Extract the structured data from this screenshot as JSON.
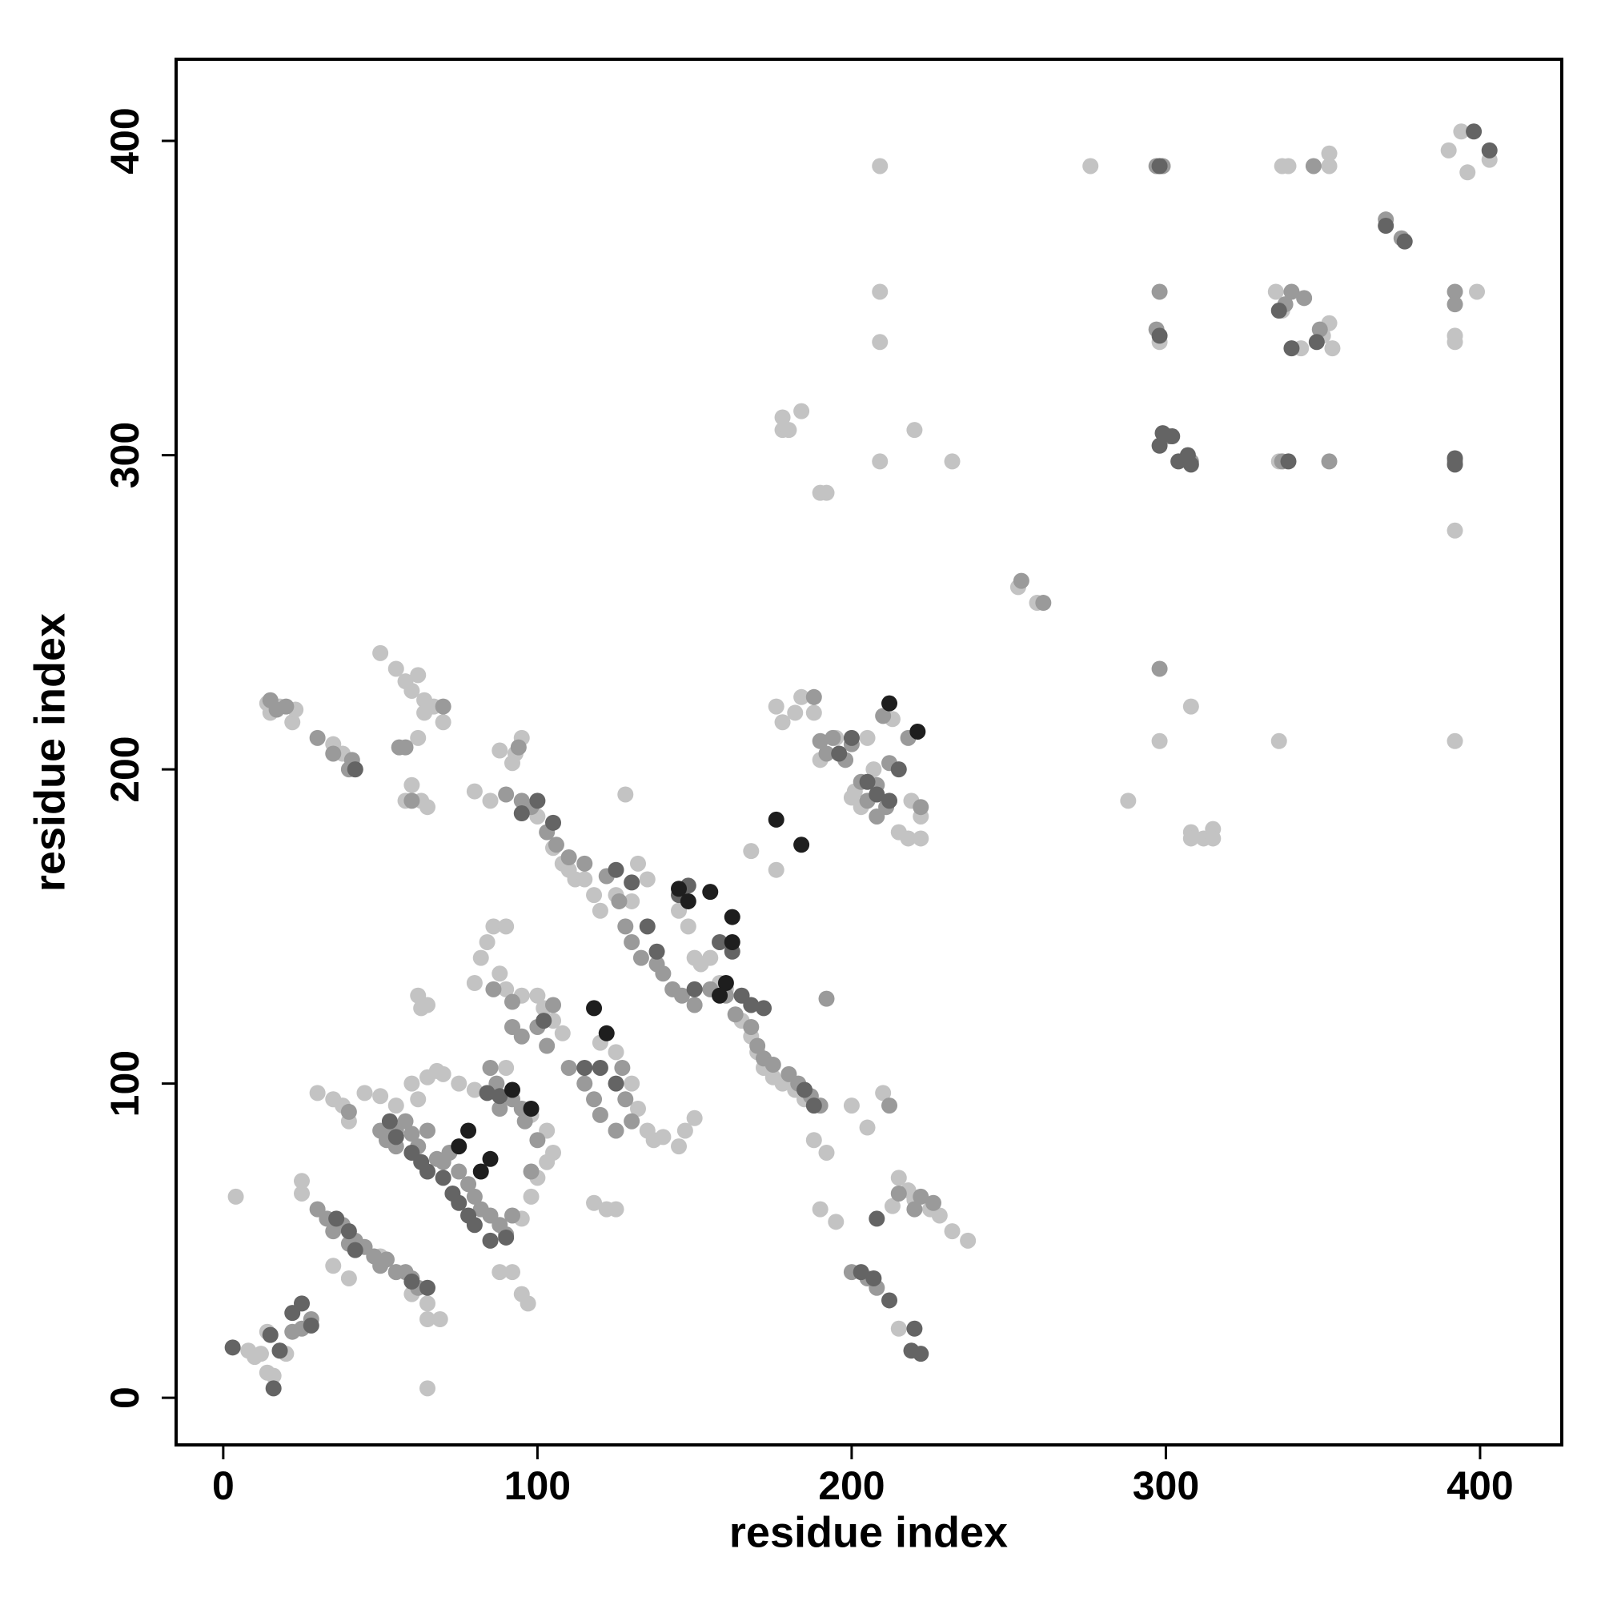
{
  "chart_data": {
    "type": "scatter",
    "x_label": "residue index",
    "y_label": "residue index",
    "xlim": [
      -15,
      426
    ],
    "ylim": [
      -15,
      426
    ],
    "xticks": [
      0,
      100,
      200,
      300,
      400
    ],
    "yticks": [
      0,
      100,
      200,
      300,
      400
    ],
    "series": [
      {
        "color": "#c3c3c3",
        "x": [
          209,
          276,
          337,
          339,
          352,
          352,
          390,
          394,
          396,
          403,
          209,
          209,
          298,
          352,
          350,
          353,
          335,
          337,
          343,
          392,
          392,
          399,
          209,
          232,
          220,
          178,
          178,
          184,
          180,
          190,
          192,
          336,
          392,
          298,
          336,
          392,
          308,
          288,
          308,
          308,
          312,
          315,
          315,
          253,
          259,
          176,
          178,
          182,
          184,
          188,
          190,
          195,
          200,
          201,
          203,
          213,
          215,
          218,
          222,
          222,
          219,
          205,
          207,
          176,
          168,
          50,
          55,
          58,
          62,
          60,
          64,
          67,
          70,
          62,
          64,
          58,
          60,
          63,
          65,
          80,
          85,
          88,
          95,
          93,
          92,
          14,
          15,
          18,
          22,
          23,
          38,
          35,
          100,
          105,
          108,
          110,
          112,
          115,
          118,
          120,
          125,
          130,
          128,
          132,
          135,
          145,
          148,
          150,
          152,
          155,
          158,
          160,
          165,
          168,
          170,
          172,
          175,
          178,
          182,
          185,
          188,
          192,
          190,
          195,
          200,
          210,
          205,
          213,
          215,
          218,
          220,
          225,
          228,
          232,
          237,
          215,
          45,
          50,
          55,
          60,
          62,
          65,
          68,
          70,
          75,
          80,
          80,
          82,
          84,
          86,
          90,
          88,
          90,
          95,
          100,
          102,
          105,
          108,
          62,
          63,
          65,
          30,
          35,
          38,
          40,
          92,
          95,
          97,
          88,
          95,
          98,
          100,
          103,
          105,
          103,
          98,
          90,
          120,
          125,
          130,
          132,
          135,
          137,
          140,
          145,
          147,
          150,
          118,
          122,
          125,
          35,
          40,
          50,
          55,
          60,
          65,
          65,
          69,
          25,
          25,
          4,
          8,
          10,
          12,
          14,
          16,
          14,
          20,
          65
        ],
        "y": [
          392,
          392,
          392,
          392,
          392,
          396,
          397,
          403,
          390,
          394,
          352,
          336,
          336,
          342,
          338,
          334,
          352,
          346,
          334,
          338,
          336,
          352,
          298,
          298,
          308,
          308,
          312,
          314,
          308,
          288,
          288,
          298,
          276,
          209,
          209,
          209,
          220,
          190,
          180,
          178,
          178,
          181,
          178,
          258,
          253,
          220,
          215,
          218,
          223,
          218,
          203,
          210,
          191,
          193,
          188,
          216,
          180,
          178,
          178,
          185,
          190,
          210,
          200,
          168,
          174,
          237,
          232,
          228,
          230,
          225,
          222,
          220,
          215,
          210,
          218,
          190,
          195,
          190,
          188,
          193,
          190,
          206,
          210,
          205,
          202,
          221,
          218,
          220,
          215,
          219,
          205,
          208,
          185,
          175,
          170,
          168,
          165,
          165,
          160,
          155,
          160,
          158,
          192,
          170,
          165,
          155,
          150,
          140,
          138,
          140,
          132,
          130,
          120,
          115,
          110,
          105,
          102,
          100,
          98,
          95,
          82,
          78,
          60,
          56,
          93,
          97,
          86,
          61,
          70,
          66,
          63,
          60,
          58,
          53,
          50,
          22,
          97,
          96,
          93,
          100,
          95,
          102,
          104,
          103,
          100,
          98,
          132,
          140,
          145,
          150,
          150,
          135,
          130,
          128,
          128,
          124,
          120,
          116,
          128,
          124,
          125,
          97,
          95,
          93,
          88,
          40,
          33,
          30,
          40,
          57,
          64,
          70,
          75,
          78,
          85,
          90,
          105,
          113,
          110,
          100,
          92,
          85,
          82,
          83,
          80,
          85,
          89,
          62,
          60,
          60,
          42,
          38,
          45,
          40,
          33,
          30,
          25,
          25,
          69,
          65,
          64,
          15,
          13,
          14,
          8,
          7,
          21,
          14,
          3
        ]
      },
      {
        "color": "#9a9a9a",
        "x": [
          297,
          299,
          347,
          370,
          375,
          392,
          392,
          338,
          344,
          340,
          349,
          297,
          298,
          337,
          352,
          298,
          254,
          261,
          392,
          301,
          308,
          188,
          190,
          192,
          194,
          198,
          200,
          203,
          205,
          208,
          211,
          212,
          210,
          218,
          222,
          208,
          15,
          17,
          20,
          30,
          35,
          40,
          41,
          58,
          70,
          60,
          94,
          42,
          90,
          95,
          98,
          103,
          106,
          110,
          115,
          122,
          126,
          128,
          130,
          133,
          138,
          140,
          143,
          146,
          150,
          155,
          160,
          163,
          168,
          170,
          172,
          175,
          180,
          183,
          187,
          190,
          192,
          212,
          200,
          205,
          208,
          215,
          220,
          222,
          226,
          50,
          52,
          55,
          55,
          58,
          60,
          62,
          65,
          68,
          70,
          72,
          75,
          78,
          80,
          82,
          85,
          88,
          90,
          92,
          85,
          87,
          92,
          95,
          96,
          100,
          98,
          30,
          33,
          35,
          38,
          40,
          42,
          45,
          48,
          50,
          52,
          55,
          58,
          60,
          62,
          22,
          25,
          28,
          18,
          92,
          95,
          100,
          103,
          105,
          110,
          115,
          118,
          120,
          125,
          128,
          130,
          127,
          86,
          92,
          88,
          56,
          40
        ],
        "y": [
          392,
          392,
          392,
          375,
          369,
          352,
          348,
          348,
          350,
          352,
          340,
          340,
          352,
          298,
          298,
          232,
          260,
          253,
          298,
          306,
          298,
          223,
          209,
          205,
          210,
          203,
          208,
          196,
          190,
          195,
          188,
          202,
          217,
          210,
          188,
          185,
          222,
          219,
          220,
          210,
          205,
          200,
          203,
          207,
          220,
          190,
          207,
          200,
          192,
          190,
          188,
          180,
          176,
          172,
          170,
          166,
          158,
          150,
          145,
          140,
          138,
          135,
          130,
          128,
          125,
          130,
          128,
          122,
          118,
          112,
          108,
          106,
          103,
          100,
          96,
          93,
          127,
          93,
          40,
          38,
          35,
          65,
          60,
          64,
          62,
          85,
          82,
          85,
          80,
          88,
          84,
          80,
          85,
          76,
          75,
          78,
          72,
          68,
          64,
          60,
          58,
          55,
          52,
          58,
          105,
          100,
          95,
          92,
          88,
          82,
          72,
          60,
          57,
          53,
          55,
          49,
          50,
          48,
          45,
          42,
          44,
          40,
          40,
          38,
          35,
          21,
          22,
          25,
          15,
          118,
          115,
          118,
          112,
          125,
          105,
          100,
          95,
          90,
          85,
          95,
          88,
          105,
          130,
          126,
          92,
          207,
          91
        ]
      },
      {
        "color": "#646464",
        "x": [
          298,
          398,
          403,
          370,
          376,
          336,
          340,
          348,
          298,
          298,
          299,
          302,
          304,
          308,
          307,
          392,
          392,
          339,
          196,
          200,
          205,
          208,
          212,
          215,
          42,
          95,
          100,
          105,
          125,
          130,
          135,
          138,
          145,
          148,
          150,
          158,
          162,
          165,
          168,
          172,
          185,
          188,
          208,
          212,
          220,
          222,
          219,
          203,
          207,
          53,
          55,
          60,
          63,
          65,
          70,
          73,
          75,
          78,
          80,
          85,
          90,
          84,
          88,
          36,
          40,
          42,
          60,
          65,
          15,
          22,
          25,
          28,
          16,
          3,
          18,
          102,
          115,
          120,
          125
        ],
        "y": [
          392,
          403,
          397,
          373,
          368,
          346,
          334,
          336,
          338,
          303,
          307,
          306,
          298,
          297,
          300,
          299,
          297,
          298,
          205,
          210,
          196,
          192,
          190,
          200,
          200,
          186,
          190,
          183,
          168,
          164,
          150,
          142,
          160,
          163,
          130,
          145,
          142,
          128,
          125,
          124,
          98,
          93,
          57,
          31,
          22,
          14,
          15,
          40,
          38,
          88,
          83,
          78,
          75,
          72,
          70,
          65,
          62,
          58,
          55,
          50,
          51,
          97,
          96,
          57,
          53,
          47,
          37,
          35,
          20,
          27,
          30,
          23,
          3,
          16,
          15,
          120,
          105,
          105,
          100
        ]
      },
      {
        "color": "#1e1e1e",
        "x": [
          212,
          221,
          176,
          184,
          145,
          148,
          155,
          162,
          162,
          160,
          118,
          122,
          158,
          78,
          85,
          92,
          98,
          75,
          82
        ],
        "y": [
          221,
          212,
          184,
          176,
          162,
          158,
          161,
          153,
          145,
          132,
          124,
          116,
          128,
          85,
          76,
          98,
          92,
          80,
          72
        ]
      }
    ]
  }
}
